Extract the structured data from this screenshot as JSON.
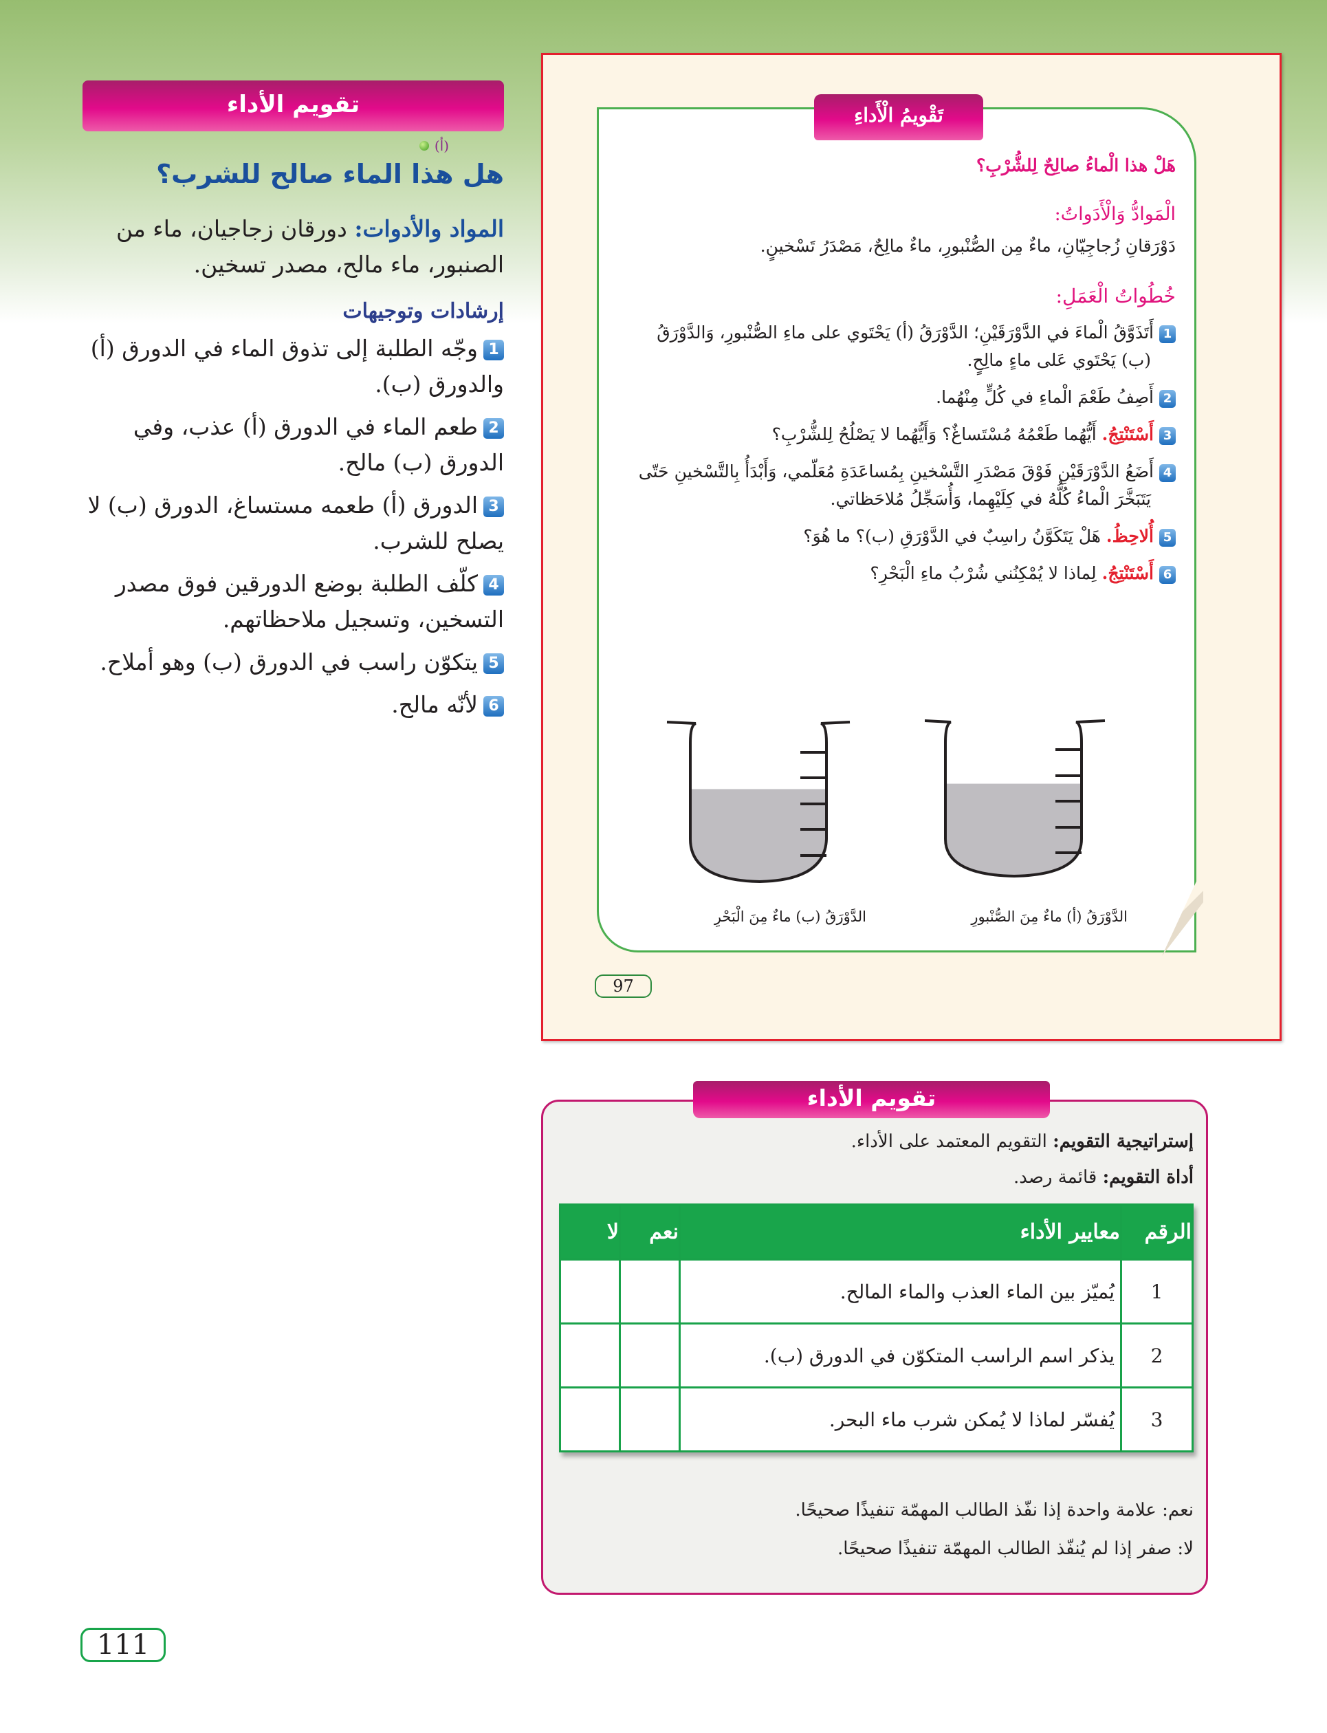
{
  "left": {
    "header": "تقويم الأداء",
    "title": "هل هذا الماء صالح للشرب؟",
    "title_marker": "(أ)",
    "materials_label": "المواد والأدوات:",
    "materials_text": "دورقان زجاجيان، ماء من الصنبور، ماء مالح، مصدر تسخين.",
    "guidance_heading": "إرشادات وتوجيهات",
    "items": [
      {
        "n": "1",
        "text": "وجّه الطلبة إلى تذوق الماء في الدورق (أ) والدورق (ب)."
      },
      {
        "n": "2",
        "text": "طعم الماء في الدورق (أ) عذب، وفي الدورق (ب) مالح."
      },
      {
        "n": "3",
        "text": "الدورق (أ) طعمه مستساغ، الدورق (ب) لا يصلح للشرب."
      },
      {
        "n": "4",
        "text": "كلّف الطلبة بوضع الدورقين فوق مصدر التسخين، وتسجيل ملاحظاتهم."
      },
      {
        "n": "5",
        "text": "يتكوّن راسب في الدورق (ب) وهو أملاح."
      },
      {
        "n": "6",
        "text": "لأنّه مالح."
      }
    ],
    "page_number": "111"
  },
  "student_page": {
    "tab": "تَقْويمُ الْأَداءِ",
    "question": "هَلْ هذا الْماءُ صالِحٌ لِلشُّرْبِ؟",
    "materials_heading": "الْمَوادُّ وَالْأَدَواتُ:",
    "materials_text": "دَوْرَقانِ زُجاجِيّانِ، ماءٌ مِن الصُّنْبورِ، ماءٌ مالِحٌ، مَصْدَرُ تَسْخينٍ.",
    "steps_heading": "خُطُواتُ الْعَمَلِ:",
    "steps": [
      {
        "n": "1",
        "keyword": "",
        "text": "أَتَذَوَّقُ الْماءَ في الدَّوْرَقَيْنِ؛ الدَّوْرَقُ (أ) يَحْتَوي على ماءِ الصُّنْبورِ، وَالدَّوْرَقُ (ب) يَحْتَوي عَلى ماءٍ مالِحٍ."
      },
      {
        "n": "2",
        "keyword": "",
        "text": "أَصِفُ طَعْمَ الْماءِ في كُلٍّ مِنْهُما."
      },
      {
        "n": "3",
        "keyword": "أَسْتَنْتِجُ.",
        "text": "أَيُّهُما طَعْمُهُ مُسْتَساغٌ؟ وَأَيُّهُما لا يَصْلُحُ لِلشُّرْبِ؟"
      },
      {
        "n": "4",
        "keyword": "",
        "text": "أَضَعُ الدَّوْرَقَيْنِ فَوْقَ مَصْدَرِ التَّسْخينِ بِمُساعَدَةِ مُعَلّمي، وَأَبْدَأُ بِالتَّسْخينِ حَتّى يَتَبَخَّرَ الْماءُ كُلُّهُ في كِلَيْهِما، وَأُسَجِّلُ مُلاحَظاتي."
      },
      {
        "n": "5",
        "keyword": "أُلاحِظُ.",
        "text": "هَلْ يَتَكَوَّنُ راسِبٌ في الدَّوْرَقِ (ب)؟ ما هُوَ؟"
      },
      {
        "n": "6",
        "keyword": "أَسْتَنْتِجُ.",
        "text": "لِماذا لا يُمْكِنُني شُرْبُ ماءِ الْبَحْرِ؟"
      }
    ],
    "beaker_b_label": "الدَّوْرَقُ (ب)  ماءٌ مِنَ الْبَحْرِ",
    "beaker_a_label": "الدَّوْرَقُ (أ)  ماءٌ مِنَ الصُّنْبورِ",
    "beaker_b_fill": 0.58,
    "beaker_a_fill": 0.6,
    "page_number": "97"
  },
  "assessment": {
    "tab": "تقويم الأداء",
    "strategy_label": "إستراتيجية التقويم:",
    "strategy_value": "التقويم المعتمد على الأداء.",
    "tool_label": "أداة التقويم:",
    "tool_value": "قائمة رصد.",
    "table": {
      "headers": [
        "الرقم",
        "معايير الأداء",
        "نعم",
        "لا"
      ],
      "rows": [
        {
          "n": "1",
          "criterion": "يُميّز بين الماء العذب والماء المالح."
        },
        {
          "n": "2",
          "criterion": "يذكر اسم الراسب المتكوّن في الدورق (ب)."
        },
        {
          "n": "3",
          "criterion": "يُفسّر لماذا لا يُمكن شرب ماء البحر."
        }
      ]
    },
    "note_yes": "نعم: علامة واحدة إذا نفّذ الطالب المهمّة تنفيذًا صحيحًا.",
    "note_no": "لا: صفر إذا لم يُنفّذ الطالب المهمّة تنفيذًا صحيحًا."
  },
  "colors": {
    "pink": "#e20a8a",
    "green": "#19a54b",
    "red_border": "#e4202e",
    "blue_title": "#1a4f9c"
  }
}
